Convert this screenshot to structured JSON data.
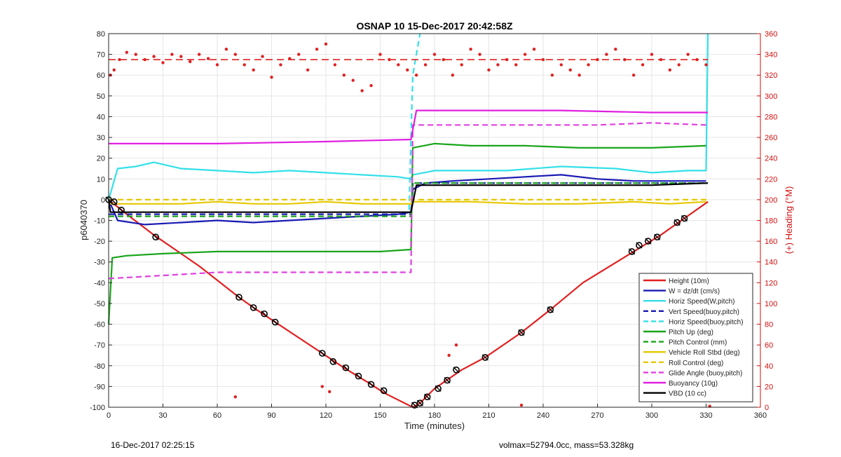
{
  "chart_data": {
    "type": "line",
    "title": "OSNAP 10 15-Dec-2017 20:42:58Z",
    "xlabel": "Time (minutes)",
    "ylabel": "p6040370",
    "y2label": "(+) Heading (°M)",
    "xlim": [
      0,
      360
    ],
    "ylim": [
      -100,
      80
    ],
    "y2lim": [
      0,
      360
    ],
    "x_ticks": [
      0,
      30,
      60,
      90,
      120,
      150,
      180,
      210,
      240,
      270,
      300,
      330,
      360
    ],
    "y_ticks": [
      -100,
      -90,
      -80,
      -70,
      -60,
      -50,
      -40,
      -30,
      -20,
      -10,
      0,
      10,
      20,
      30,
      40,
      50,
      60,
      70,
      80
    ],
    "y2_ticks": [
      0,
      20,
      40,
      60,
      80,
      100,
      120,
      140,
      160,
      180,
      200,
      220,
      240,
      260,
      280,
      300,
      320,
      340,
      360
    ],
    "grid": true,
    "legend_position": "bottom-right",
    "series": [
      {
        "name": "Height (10m)",
        "color": "#e02020",
        "style": "solid",
        "axis": "left",
        "x": [
          0,
          10,
          25,
          50,
          72,
          80,
          92,
          118,
          130,
          145,
          152,
          168,
          172,
          180,
          195,
          208,
          228,
          244,
          262,
          290,
          305,
          318,
          331
        ],
        "y": [
          0,
          -7,
          -17,
          -32,
          -47,
          -52,
          -59,
          -74,
          -81,
          -89,
          -93,
          -100,
          -98,
          -91,
          -82,
          -76,
          -64,
          -53,
          -40,
          -25,
          -17,
          -9,
          -1
        ]
      },
      {
        "name": "W = dz/dt (cm/s)",
        "color": "#1a1ab4",
        "style": "solid",
        "axis": "left",
        "x": [
          0,
          5,
          20,
          40,
          60,
          80,
          100,
          120,
          140,
          160,
          167,
          168,
          175,
          190,
          210,
          230,
          250,
          270,
          290,
          310,
          330
        ],
        "y": [
          0,
          -10,
          -12,
          -11,
          -10,
          -11,
          -10,
          -9,
          -8,
          -7,
          -6,
          5,
          8,
          9,
          10,
          11,
          12,
          10,
          9,
          9,
          9
        ]
      },
      {
        "name": "Horiz Speed(W,pitch)",
        "color": "#33e0e8",
        "style": "solid",
        "axis": "left",
        "x": [
          0,
          5,
          15,
          25,
          40,
          60,
          80,
          100,
          120,
          140,
          160,
          167,
          168,
          180,
          200,
          220,
          250,
          280,
          300,
          320,
          330,
          331
        ],
        "y": [
          0,
          15,
          16,
          18,
          15,
          14,
          13,
          14,
          13,
          12,
          11,
          10,
          12,
          14,
          14,
          14,
          16,
          15,
          13,
          14,
          14,
          80
        ]
      },
      {
        "name": "Vert Speed(buoy,pitch)",
        "color": "#1a1ab4",
        "style": "dashed",
        "axis": "left",
        "x": [
          0,
          167,
          168,
          331
        ],
        "y": [
          -7,
          -7,
          8,
          8
        ]
      },
      {
        "name": "Horiz Speed(buoy,pitch)",
        "color": "#33e0e8",
        "style": "dashed",
        "axis": "left",
        "x": [
          166,
          167,
          168,
          172
        ],
        "y": [
          -5,
          30,
          60,
          80
        ]
      },
      {
        "name": "Pitch Up (deg)",
        "color": "#1aa51a",
        "style": "solid",
        "axis": "left",
        "x": [
          0,
          2,
          10,
          30,
          60,
          90,
          120,
          150,
          167,
          168,
          180,
          200,
          230,
          260,
          300,
          330
        ],
        "y": [
          -60,
          -28,
          -27,
          -26,
          -25,
          -25,
          -25,
          -25,
          -24,
          25,
          27,
          26,
          26,
          25,
          25,
          26
        ]
      },
      {
        "name": "Pitch Control (mm)",
        "color": "#1aa51a",
        "style": "dashed",
        "axis": "left",
        "x": [
          0,
          167,
          168,
          331
        ],
        "y": [
          -8,
          -8,
          8,
          8
        ]
      },
      {
        "name": "Vehicle Roll Stbd (deg)",
        "color": "#e6c800",
        "style": "solid",
        "axis": "left",
        "x": [
          0,
          10,
          25,
          40,
          60,
          80,
          100,
          120,
          140,
          160,
          167,
          168,
          180,
          200,
          230,
          260,
          290,
          310,
          330
        ],
        "y": [
          -2,
          -2,
          -2,
          -2,
          -1,
          -2,
          -2,
          -1,
          -2,
          -2,
          -2,
          -1,
          -1,
          -1,
          -2,
          -2,
          -1,
          -2,
          -1
        ]
      },
      {
        "name": "Roll Control (deg)",
        "color": "#e6c800",
        "style": "dashed",
        "axis": "left",
        "x": [
          0,
          167,
          168,
          331
        ],
        "y": [
          0,
          0,
          0,
          0
        ]
      },
      {
        "name": "Glide Angle (buoy,pitch)",
        "color": "#e040e0",
        "style": "dashed",
        "axis": "left",
        "x": [
          0,
          20,
          40,
          60,
          90,
          120,
          150,
          167,
          168,
          180,
          210,
          240,
          270,
          300,
          330
        ],
        "y": [
          -38,
          -37,
          -36,
          -35,
          -35,
          -35,
          -35,
          -35,
          36,
          36,
          36,
          36,
          36,
          37,
          36
        ]
      },
      {
        "name": "Buoyancy (10g)",
        "color": "#e020e0",
        "style": "solid",
        "axis": "left",
        "x": [
          0,
          60,
          120,
          167,
          170,
          200,
          250,
          300,
          331
        ],
        "y": [
          27,
          27,
          28,
          29,
          43,
          43,
          43,
          42,
          42
        ]
      },
      {
        "name": "VBD (10 cc)",
        "color": "#000000",
        "style": "solid",
        "axis": "left",
        "x": [
          0,
          1,
          167,
          170,
          200,
          250,
          300,
          331
        ],
        "y": [
          0,
          -6,
          -6,
          7,
          7,
          7,
          7,
          8
        ]
      }
    ],
    "heading_series": {
      "name": "Heading",
      "color": "#e02020",
      "axis": "right",
      "style": "dots",
      "x": [
        1,
        3,
        6,
        10,
        15,
        20,
        25,
        30,
        35,
        40,
        45,
        50,
        55,
        60,
        65,
        70,
        75,
        80,
        85,
        90,
        95,
        100,
        105,
        110,
        115,
        120,
        125,
        130,
        135,
        140,
        145,
        150,
        155,
        160,
        165,
        170,
        175,
        180,
        185,
        190,
        195,
        200,
        205,
        210,
        215,
        220,
        225,
        230,
        235,
        240,
        245,
        250,
        255,
        260,
        265,
        270,
        275,
        280,
        285,
        290,
        295,
        300,
        305,
        310,
        315,
        320,
        325,
        330
      ],
      "y": [
        320,
        325,
        335,
        342,
        340,
        335,
        338,
        332,
        340,
        338,
        333,
        340,
        336,
        330,
        345,
        340,
        330,
        325,
        338,
        318,
        330,
        336,
        340,
        325,
        345,
        350,
        330,
        320,
        315,
        305,
        310,
        340,
        335,
        330,
        325,
        320,
        330,
        340,
        335,
        320,
        330,
        345,
        340,
        325,
        330,
        335,
        330,
        340,
        345,
        335,
        320,
        330,
        325,
        320,
        330,
        335,
        340,
        345,
        335,
        320,
        330,
        340,
        335,
        325,
        330,
        340,
        335,
        330
      ],
      "baseline_dashed": 335
    },
    "heading_outliers": {
      "x": [
        70,
        118,
        122,
        188,
        192,
        228,
        332
      ],
      "y": [
        10,
        20,
        15,
        50,
        60,
        2,
        1
      ]
    },
    "markers": {
      "x": [
        0,
        3,
        7,
        26,
        72,
        80,
        86,
        92,
        118,
        124,
        131,
        138,
        145,
        152,
        169,
        172,
        176,
        182,
        187,
        192,
        208,
        228,
        244,
        289,
        293,
        298,
        303,
        314,
        318
      ],
      "y": [
        0,
        -1,
        -5,
        -18,
        -47,
        -52,
        -55,
        -59,
        -74,
        -78,
        -81,
        -85,
        -89,
        -92,
        -99,
        -98,
        -95,
        -91,
        -87,
        -82,
        -76,
        -64,
        -53,
        -25,
        -22,
        -20,
        -18,
        -11,
        -9
      ]
    }
  },
  "footer": {
    "left": "16-Dec-2017 02:25:15",
    "right": "volmax=52794.0cc, mass=53.328kg"
  }
}
